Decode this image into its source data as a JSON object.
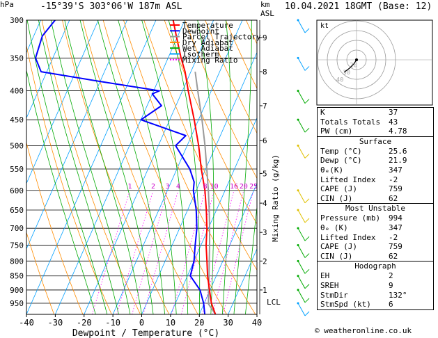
{
  "header": {
    "hpa_label": "hPa",
    "location": "-15°39'S  303°06'W  187m  ASL",
    "km_label": "km",
    "asl_label": "ASL",
    "datetime": "10.04.2021  18GMT  (Base: 12)"
  },
  "legend": [
    {
      "name": "Temperature",
      "color": "#ff0000"
    },
    {
      "name": "Dewpoint",
      "color": "#0000ff"
    },
    {
      "name": "Parcel Trajectory",
      "color": "#9a9a9a"
    },
    {
      "name": "Dry Adiabat",
      "color": "#ff8c00"
    },
    {
      "name": "Wet Adiabat",
      "color": "#00aa00"
    },
    {
      "name": "Isotherm",
      "color": "#00a0ff"
    },
    {
      "name": "Mixing Ratio",
      "color": "#ff00ff"
    }
  ],
  "chart_data": {
    "type": "skew-t",
    "xlabel": "Dewpoint / Temperature (°C)",
    "ylabel_right": "Mixing Ratio (g/kg)",
    "x_ticks": [
      -40,
      -30,
      -20,
      -10,
      0,
      10,
      20,
      30,
      40
    ],
    "pressure_levels": [
      300,
      350,
      400,
      450,
      500,
      550,
      600,
      650,
      700,
      750,
      800,
      850,
      900,
      950
    ],
    "pressure_range": [
      300,
      994
    ],
    "km_ticks": [
      {
        "km": "9",
        "p": 322
      },
      {
        "km": "8",
        "p": 370
      },
      {
        "km": "7",
        "p": 425
      },
      {
        "km": "6",
        "p": 490
      },
      {
        "km": "5",
        "p": 560
      },
      {
        "km": "4",
        "p": 632
      },
      {
        "km": "3",
        "p": 712
      },
      {
        "km": "2",
        "p": 800
      },
      {
        "km": "1",
        "p": 900
      }
    ],
    "lcl_label": "LCL",
    "lcl_pressure": 953,
    "mixing_ratio_labels": [
      "1",
      "2",
      "3",
      "4",
      "8",
      "10",
      "16",
      "20",
      "25"
    ],
    "mixing_ratio_values": [
      1,
      2,
      3,
      4,
      8,
      10,
      16,
      20,
      25
    ],
    "temperature": [
      {
        "p": 994,
        "t": 25.6
      },
      {
        "p": 950,
        "t": 22.5
      },
      {
        "p": 900,
        "t": 19.8
      },
      {
        "p": 850,
        "t": 17.0
      },
      {
        "p": 800,
        "t": 14.5
      },
      {
        "p": 750,
        "t": 11.8
      },
      {
        "p": 700,
        "t": 9.5
      },
      {
        "p": 650,
        "t": 6.5
      },
      {
        "p": 600,
        "t": 3.0
      },
      {
        "p": 550,
        "t": -1.5
      },
      {
        "p": 500,
        "t": -6.0
      },
      {
        "p": 450,
        "t": -11.5
      },
      {
        "p": 400,
        "t": -18.0
      },
      {
        "p": 370,
        "t": -22.0
      },
      {
        "p": 350,
        "t": -25.5
      },
      {
        "p": 320,
        "t": -30.5
      },
      {
        "p": 300,
        "t": -34.0
      }
    ],
    "dewpoint": [
      {
        "p": 994,
        "t": 21.9
      },
      {
        "p": 950,
        "t": 19.8
      },
      {
        "p": 900,
        "t": 16.5
      },
      {
        "p": 850,
        "t": 11.0
      },
      {
        "p": 800,
        "t": 10.0
      },
      {
        "p": 750,
        "t": 8.0
      },
      {
        "p": 700,
        "t": 6.0
      },
      {
        "p": 650,
        "t": 3.0
      },
      {
        "p": 600,
        "t": -1.0
      },
      {
        "p": 580,
        "t": -2.0
      },
      {
        "p": 550,
        "t": -5.5
      },
      {
        "p": 500,
        "t": -14.0
      },
      {
        "p": 480,
        "t": -12.0
      },
      {
        "p": 450,
        "t": -30.0
      },
      {
        "p": 425,
        "t": -25.0
      },
      {
        "p": 405,
        "t": -30.0
      },
      {
        "p": 400,
        "t": -28.0
      },
      {
        "p": 385,
        "t": -50.0
      },
      {
        "p": 370,
        "t": -72.0
      },
      {
        "p": 350,
        "t": -76.0
      },
      {
        "p": 320,
        "t": -77.0
      },
      {
        "p": 300,
        "t": -75.0
      }
    ],
    "parcel": [
      {
        "p": 994,
        "t": 25.6
      },
      {
        "p": 953,
        "t": 21.6
      },
      {
        "p": 900,
        "t": 19.5
      },
      {
        "p": 850,
        "t": 17.5
      },
      {
        "p": 800,
        "t": 15.3
      },
      {
        "p": 750,
        "t": 13.0
      },
      {
        "p": 700,
        "t": 10.4
      },
      {
        "p": 650,
        "t": 7.5
      },
      {
        "p": 600,
        "t": 4.2
      },
      {
        "p": 550,
        "t": 0.4
      },
      {
        "p": 500,
        "t": -3.8
      },
      {
        "p": 450,
        "t": -8.8
      },
      {
        "p": 400,
        "t": -14.7
      },
      {
        "p": 370,
        "t": -18.5
      }
    ],
    "hodograph": {
      "rings": [
        "20",
        "30",
        "40"
      ],
      "unit": "kt"
    }
  },
  "indices": [
    {
      "label": "K",
      "value": "37"
    },
    {
      "label": "Totals Totals",
      "value": "43"
    },
    {
      "label": "PW (cm)",
      "value": "4.78"
    }
  ],
  "surface": {
    "title": "Surface",
    "rows": [
      {
        "label": "Temp (°C)",
        "value": "25.6"
      },
      {
        "label": "Dewp (°C)",
        "value": "21.9"
      },
      {
        "label": "θₑ(K)",
        "value": "347"
      },
      {
        "label": "Lifted Index",
        "value": "-2"
      },
      {
        "label": "CAPE (J)",
        "value": "759"
      },
      {
        "label": "CIN (J)",
        "value": "62"
      }
    ]
  },
  "most_unstable": {
    "title": "Most Unstable",
    "rows": [
      {
        "label": "Pressure (mb)",
        "value": "994"
      },
      {
        "label": "θₑ (K)",
        "value": "347"
      },
      {
        "label": "Lifted Index",
        "value": "-2"
      },
      {
        "label": "CAPE (J)",
        "value": "759"
      },
      {
        "label": "CIN (J)",
        "value": "62"
      }
    ]
  },
  "hodograph_panel": {
    "title": "Hodograph",
    "rows": [
      {
        "label": "EH",
        "value": "2"
      },
      {
        "label": "SREH",
        "value": "9"
      },
      {
        "label": "StmDir",
        "value": "132°"
      },
      {
        "label": "StmSpd (kt)",
        "value": "6"
      }
    ]
  },
  "credit": "© weatheronline.co.uk"
}
